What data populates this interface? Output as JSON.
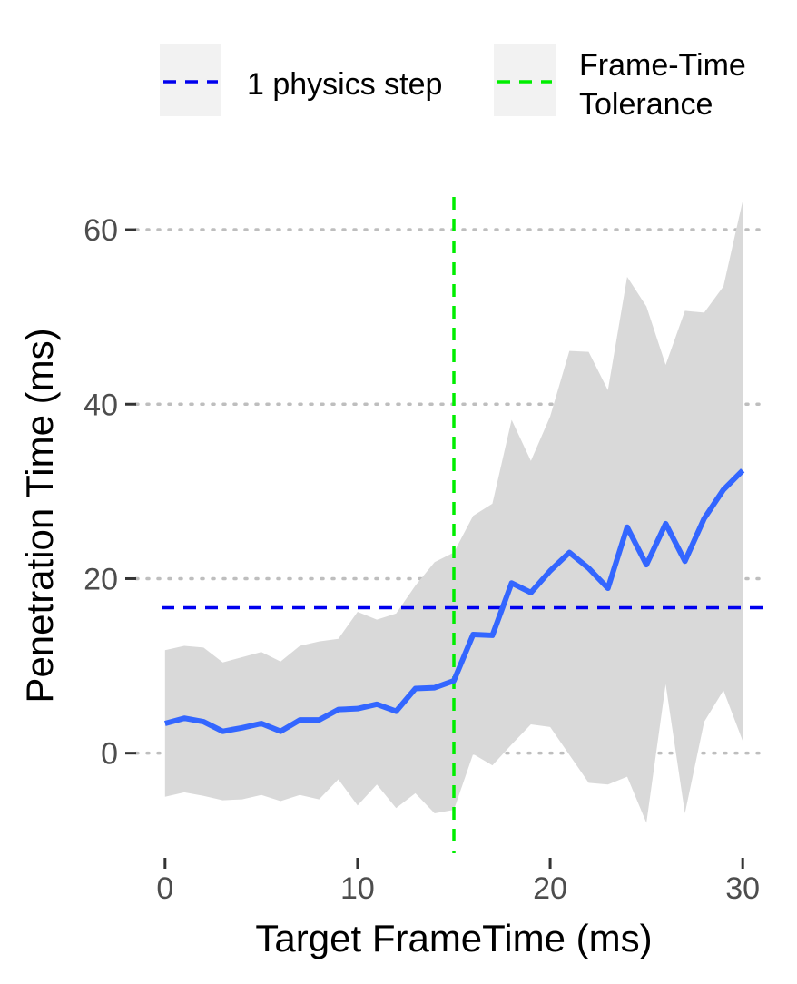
{
  "chart_data": {
    "type": "line",
    "title": "",
    "xlabel": "Target FrameTime (ms)",
    "ylabel": "Penetration Time (ms)",
    "xlim": [
      -1.5,
      31.5
    ],
    "ylim": [
      -12,
      65
    ],
    "xticks": [
      0,
      10,
      20,
      30
    ],
    "xtick_labels": [
      "0",
      "10",
      "20",
      "30"
    ],
    "yticks": [
      0,
      20,
      40,
      60
    ],
    "ytick_labels": [
      "0",
      "20",
      "40",
      "60"
    ],
    "grid": "horizontal dotted",
    "legend_position": "top",
    "x": [
      0,
      1,
      2,
      3,
      4,
      5,
      6,
      7,
      8,
      9,
      10,
      11,
      12,
      13,
      14,
      15,
      16,
      17,
      18,
      19,
      20,
      21,
      22,
      23,
      24,
      25,
      26,
      27,
      28,
      29,
      30
    ],
    "series": [
      {
        "name": "",
        "color": "#3366ff",
        "values": [
          3.4,
          4.0,
          3.6,
          2.5,
          2.9,
          3.4,
          2.5,
          3.8,
          3.8,
          5.0,
          5.1,
          5.6,
          4.8,
          7.4,
          7.5,
          8.3,
          13.6,
          13.5,
          19.5,
          18.4,
          20.9,
          23.0,
          21.2,
          18.9,
          25.9,
          21.6,
          26.3,
          22.0,
          26.9,
          30.2,
          32.4
        ],
        "ribbon_upper": [
          11.8,
          12.3,
          12.1,
          10.4,
          11.0,
          11.6,
          10.5,
          12.3,
          12.8,
          13.1,
          16.2,
          15.3,
          16.0,
          19.2,
          21.9,
          23.0,
          27.2,
          28.6,
          38.2,
          33.5,
          38.6,
          46.1,
          46.0,
          41.6,
          54.6,
          51.2,
          44.5,
          50.7,
          50.5,
          53.5,
          63.3
        ],
        "ribbon_lower": [
          -5.0,
          -4.5,
          -4.9,
          -5.4,
          -5.3,
          -4.8,
          -5.5,
          -4.8,
          -5.3,
          -3.0,
          -6.0,
          -3.6,
          -6.3,
          -4.6,
          -6.9,
          -6.5,
          -0.1,
          -1.4,
          1.0,
          3.3,
          3.0,
          -0.2,
          -3.4,
          -3.6,
          -2.7,
          -8.0,
          7.9,
          -6.9,
          3.6,
          7.2,
          1.4
        ],
        "ribbon_color": "#d9d9d9"
      }
    ],
    "reference_lines": [
      {
        "orientation": "horizontal",
        "value": 16.67,
        "color": "#0000ee",
        "style": "dashed",
        "legend": "1 physics step"
      },
      {
        "orientation": "vertical",
        "value": 15,
        "color": "#00ee00",
        "style": "dashed",
        "legend": "Frame-Time Tolerance"
      }
    ],
    "legend": {
      "entries": [
        {
          "label_lines": [
            "1 physics step"
          ],
          "color": "#0000ee"
        },
        {
          "label_lines": [
            "Frame-Time",
            "Tolerance"
          ],
          "color": "#00ee00"
        }
      ]
    },
    "colors": {
      "grid": "#bebebe",
      "legend_key_bg": "#f2f2f2",
      "tick_mark": "#333333"
    }
  }
}
